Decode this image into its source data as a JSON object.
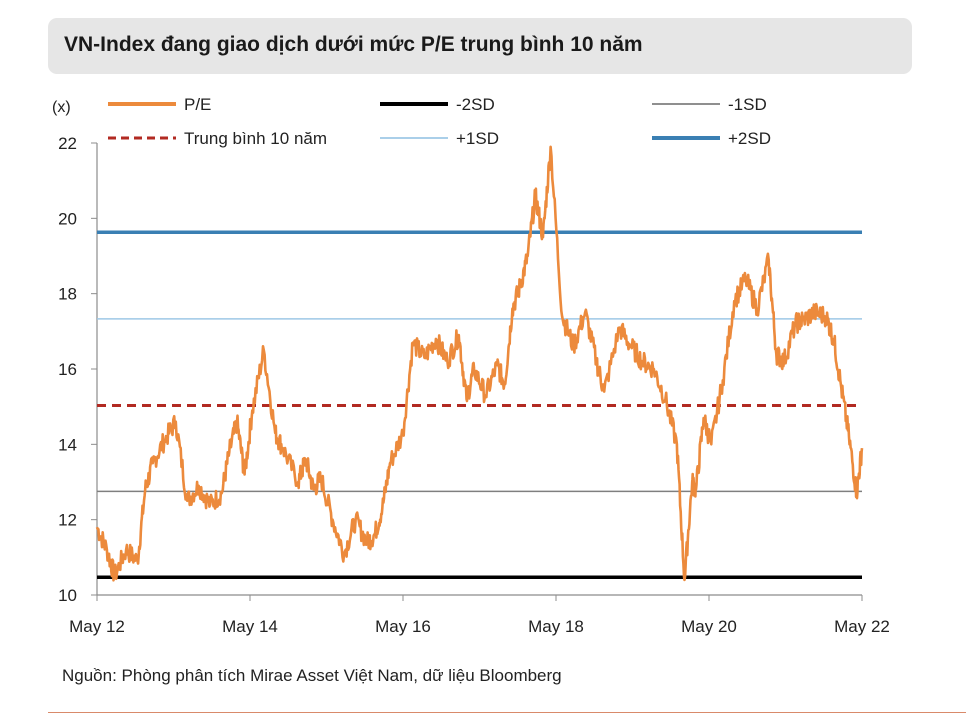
{
  "title": "VN-Index đang giao dịch dưới mức P/E trung bình 10 năm",
  "source": "Nguồn: Phòng phân tích Mirae Asset Việt Nam, dữ liệu Bloomberg",
  "colors": {
    "pe": "#ec8a3c",
    "minus2sd": "#000000",
    "minus1sd": "#7f7f7f",
    "mean": "#b22a22",
    "plus1sd": "#9ec8e6",
    "plus2sd": "#3a7fb3"
  },
  "chart_data": {
    "type": "line",
    "title": "VN-Index đang giao dịch dưới mức P/E trung bình 10 năm",
    "ylabel": "(x)",
    "xlabel": "",
    "xlim": [
      2012.37,
      2022.37
    ],
    "ylim": [
      10,
      22
    ],
    "yticks": [
      10,
      12,
      14,
      16,
      18,
      20,
      22
    ],
    "xtick_labels": [
      "May 12",
      "May 14",
      "May 16",
      "May 18",
      "May 20",
      "May 22"
    ],
    "xtick_values": [
      2012.37,
      2014.37,
      2016.37,
      2018.37,
      2020.37,
      2022.37
    ],
    "grid": false,
    "legend_position": "top",
    "legend": [
      "P/E",
      "-2SD",
      "-1SD",
      "Trung bình 10 năm",
      "+1SD",
      "+2SD"
    ],
    "reference_lines": [
      {
        "name": "-2SD",
        "value": 10.47,
        "style": "solid-thick"
      },
      {
        "name": "-1SD",
        "value": 12.75,
        "style": "solid-thin"
      },
      {
        "name": "Trung bình 10 năm",
        "value": 15.03,
        "style": "dashed"
      },
      {
        "name": "+1SD",
        "value": 17.33,
        "style": "solid-thin"
      },
      {
        "name": "+2SD",
        "value": 19.63,
        "style": "solid-thick"
      }
    ],
    "series": [
      {
        "name": "P/E",
        "x": [
          2012.37,
          2012.5,
          2012.6,
          2012.75,
          2012.9,
          2013.0,
          2013.1,
          2013.25,
          2013.4,
          2013.55,
          2013.7,
          2013.85,
          2014.0,
          2014.1,
          2014.2,
          2014.3,
          2014.4,
          2014.55,
          2014.7,
          2014.8,
          2015.0,
          2015.1,
          2015.2,
          2015.3,
          2015.45,
          2015.6,
          2015.75,
          2015.9,
          2016.0,
          2016.1,
          2016.2,
          2016.37,
          2016.5,
          2016.65,
          2016.8,
          2016.95,
          2017.1,
          2017.2,
          2017.3,
          2017.45,
          2017.6,
          2017.7,
          2017.8,
          2017.9,
          2018.0,
          2018.1,
          2018.2,
          2018.3,
          2018.45,
          2018.6,
          2018.75,
          2018.9,
          2019.0,
          2019.2,
          2019.35,
          2019.5,
          2019.65,
          2019.8,
          2019.95,
          2020.05,
          2020.15,
          2020.2,
          2020.3,
          2020.4,
          2020.55,
          2020.7,
          2020.85,
          2021.0,
          2021.15,
          2021.25,
          2021.35,
          2021.5,
          2021.6,
          2021.75,
          2021.9,
          2022.0,
          2022.1,
          2022.2,
          2022.3,
          2022.37
        ],
        "values": [
          11.8,
          11.2,
          10.5,
          11.2,
          10.9,
          12.8,
          13.5,
          14.1,
          14.6,
          12.5,
          12.9,
          12.4,
          12.7,
          13.8,
          14.6,
          13.2,
          14.9,
          16.5,
          14.3,
          13.9,
          13.0,
          13.6,
          12.8,
          13.1,
          12.0,
          11.1,
          12.0,
          11.4,
          11.6,
          12.3,
          13.5,
          14.3,
          16.7,
          16.3,
          16.8,
          16.2,
          16.9,
          15.2,
          16.0,
          15.3,
          16.1,
          15.6,
          17.6,
          18.2,
          19.0,
          20.6,
          19.5,
          21.9,
          17.4,
          16.6,
          17.5,
          16.2,
          15.4,
          17.1,
          16.6,
          16.2,
          16.0,
          15.2,
          14.0,
          10.4,
          13.0,
          12.8,
          14.7,
          14.0,
          15.7,
          17.8,
          18.4,
          17.6,
          18.9,
          16.4,
          16.2,
          17.2,
          17.3,
          17.5,
          17.4,
          16.8,
          15.5,
          14.2,
          12.7,
          13.9
        ]
      }
    ]
  }
}
